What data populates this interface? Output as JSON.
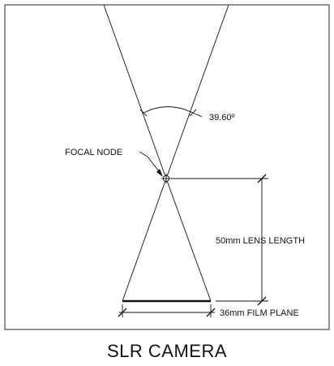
{
  "labels": {
    "angle": "39.60º",
    "focal_node": "FOCAL NODE",
    "lens_length": "50mm LENS LENGTH",
    "film_plane": "36mm FILM PLANE"
  },
  "caption": "SLR CAMERA"
}
